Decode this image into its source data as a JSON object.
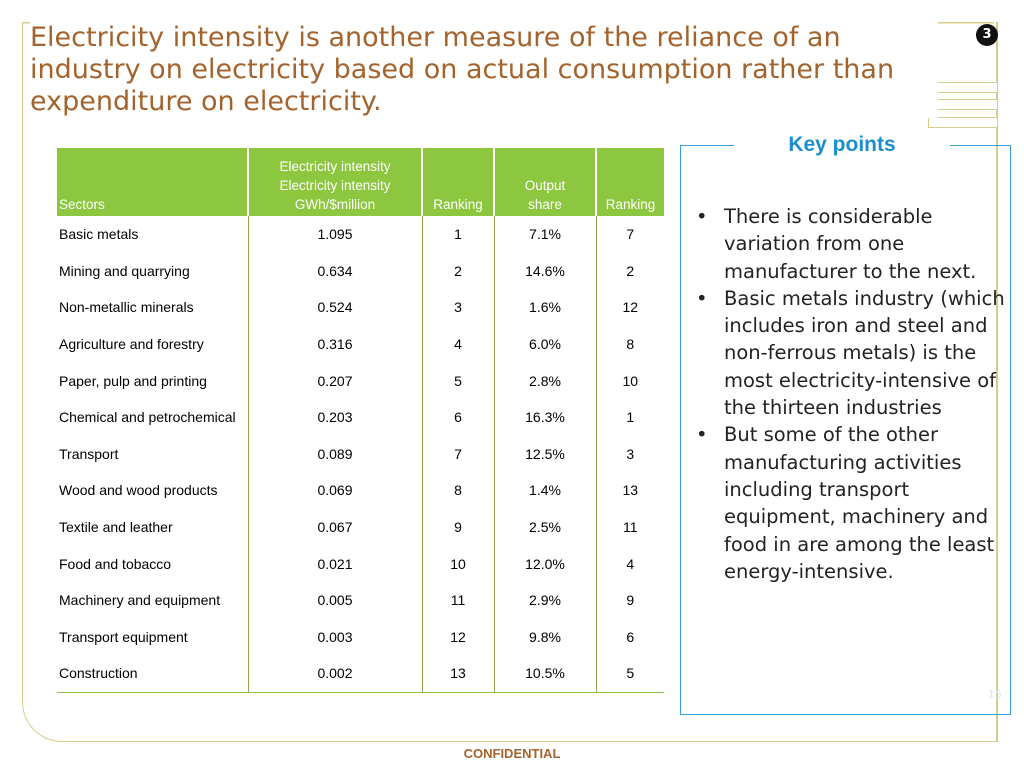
{
  "slide": {
    "title": "Electricity intensity is another measure of the reliance of an industry on electricity based on actual consumption rather than expenditure on electricity.",
    "section_badge": "3",
    "page_number": "15",
    "footer": "CONFIDENTIAL"
  },
  "table": {
    "headers": {
      "sectors": "Sectors",
      "intensity": [
        "Electricity intensity",
        "Electricity intensity",
        "GWh/$million"
      ],
      "ranking": "Ranking",
      "output_share": [
        "Output",
        "share"
      ],
      "ranking2": "Ranking"
    },
    "rows": [
      {
        "sector": "Basic metals",
        "intensity": "1.095",
        "rank": "1",
        "share": "7.1%",
        "rank2": "7"
      },
      {
        "sector": "Mining and quarrying",
        "intensity": "0.634",
        "rank": "2",
        "share": "14.6%",
        "rank2": "2"
      },
      {
        "sector": "Non-metallic minerals",
        "intensity": "0.524",
        "rank": "3",
        "share": "1.6%",
        "rank2": "12"
      },
      {
        "sector": "Agriculture and forestry",
        "intensity": "0.316",
        "rank": "4",
        "share": "6.0%",
        "rank2": "8"
      },
      {
        "sector": "Paper, pulp and printing",
        "intensity": "0.207",
        "rank": "5",
        "share": "2.8%",
        "rank2": "10"
      },
      {
        "sector": "Chemical and petrochemical",
        "intensity": "0.203",
        "rank": "6",
        "share": "16.3%",
        "rank2": "1"
      },
      {
        "sector": "Transport",
        "intensity": "0.089",
        "rank": "7",
        "share": "12.5%",
        "rank2": "3"
      },
      {
        "sector": "Wood and wood products",
        "intensity": "0.069",
        "rank": "8",
        "share": "1.4%",
        "rank2": "13"
      },
      {
        "sector": "Textile and leather",
        "intensity": "0.067",
        "rank": "9",
        "share": "2.5%",
        "rank2": "11"
      },
      {
        "sector": "Food and tobacco",
        "intensity": "0.021",
        "rank": "10",
        "share": "12.0%",
        "rank2": "4"
      },
      {
        "sector": "Machinery and equipment",
        "intensity": "0.005",
        "rank": "11",
        "share": "2.9%",
        "rank2": "9"
      },
      {
        "sector": "Transport equipment",
        "intensity": "0.003",
        "rank": "12",
        "share": "9.8%",
        "rank2": "6"
      },
      {
        "sector": "Construction",
        "intensity": "0.002",
        "rank": "13",
        "share": "10.5%",
        "rank2": "5"
      }
    ]
  },
  "key_points": {
    "title": "Key points",
    "bullets": [
      "There is considerable variation from one manufacturer to the next.",
      "Basic metals industry (which includes iron and steel and non-ferrous metals) is the most electricity-intensive of the thirteen industries",
      "But some of the other manufacturing activities including transport equipment, machinery and food in are among the least energy-intensive."
    ]
  },
  "colors": {
    "title": "#a4632c",
    "table_header": "#8dc63f",
    "key_points_accent": "#1a8fd0",
    "frame": "#d8cc8a"
  }
}
